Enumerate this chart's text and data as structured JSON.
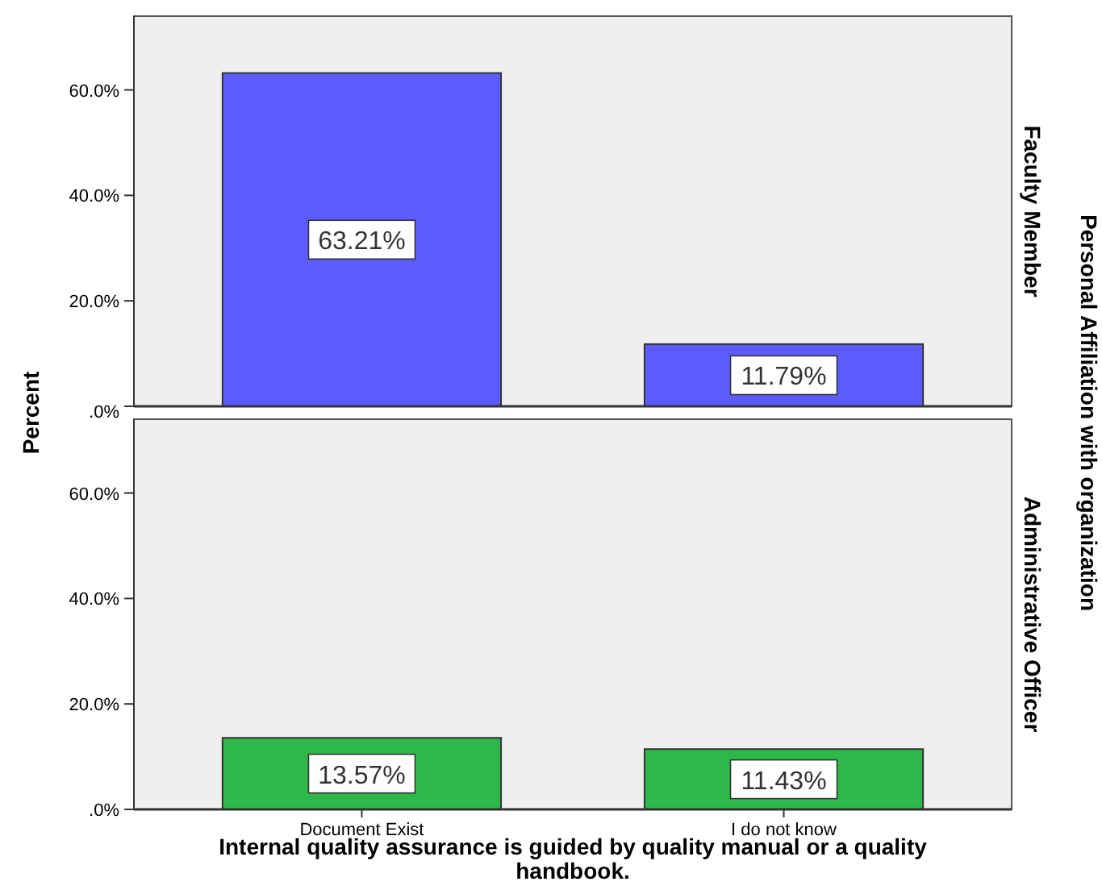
{
  "chart_data": [
    {
      "type": "bar",
      "title": "Faculty Member",
      "ylabel": "Percent",
      "y2label": "Personal Affiliation with organization",
      "categories": [
        null,
        null
      ],
      "series": [
        {
          "color": "#5b5bff",
          "values": [
            63.21,
            11.79
          ],
          "value_labels": [
            "63.21%",
            "11.79%"
          ]
        }
      ],
      "ylim": [
        0,
        74
      ],
      "yticks": [
        {
          "value": 0,
          "label": ".0%"
        },
        {
          "value": 20,
          "label": "20.0%"
        },
        {
          "value": 40,
          "label": "40.0%"
        },
        {
          "value": 60,
          "label": "60.0%"
        }
      ],
      "grid": false,
      "tick_labels": "y"
    },
    {
      "type": "bar",
      "title": "Administrative Officer",
      "xlabel": "Internal quality assurance is guided by quality manual or a quality handbook.",
      "categories": [
        "Document Exist",
        "I do not know"
      ],
      "series": [
        {
          "color": "#2fb84a",
          "values": [
            13.57,
            11.43
          ],
          "value_labels": [
            "13.57%",
            "11.43%"
          ]
        }
      ],
      "ylim": [
        0,
        74
      ],
      "yticks": [
        {
          "value": 0,
          "label": ".0%"
        },
        {
          "value": 20,
          "label": "20.0%"
        },
        {
          "value": 40,
          "label": "40.0%"
        },
        {
          "value": 60,
          "label": "60.0%"
        }
      ],
      "grid": false
    }
  ]
}
